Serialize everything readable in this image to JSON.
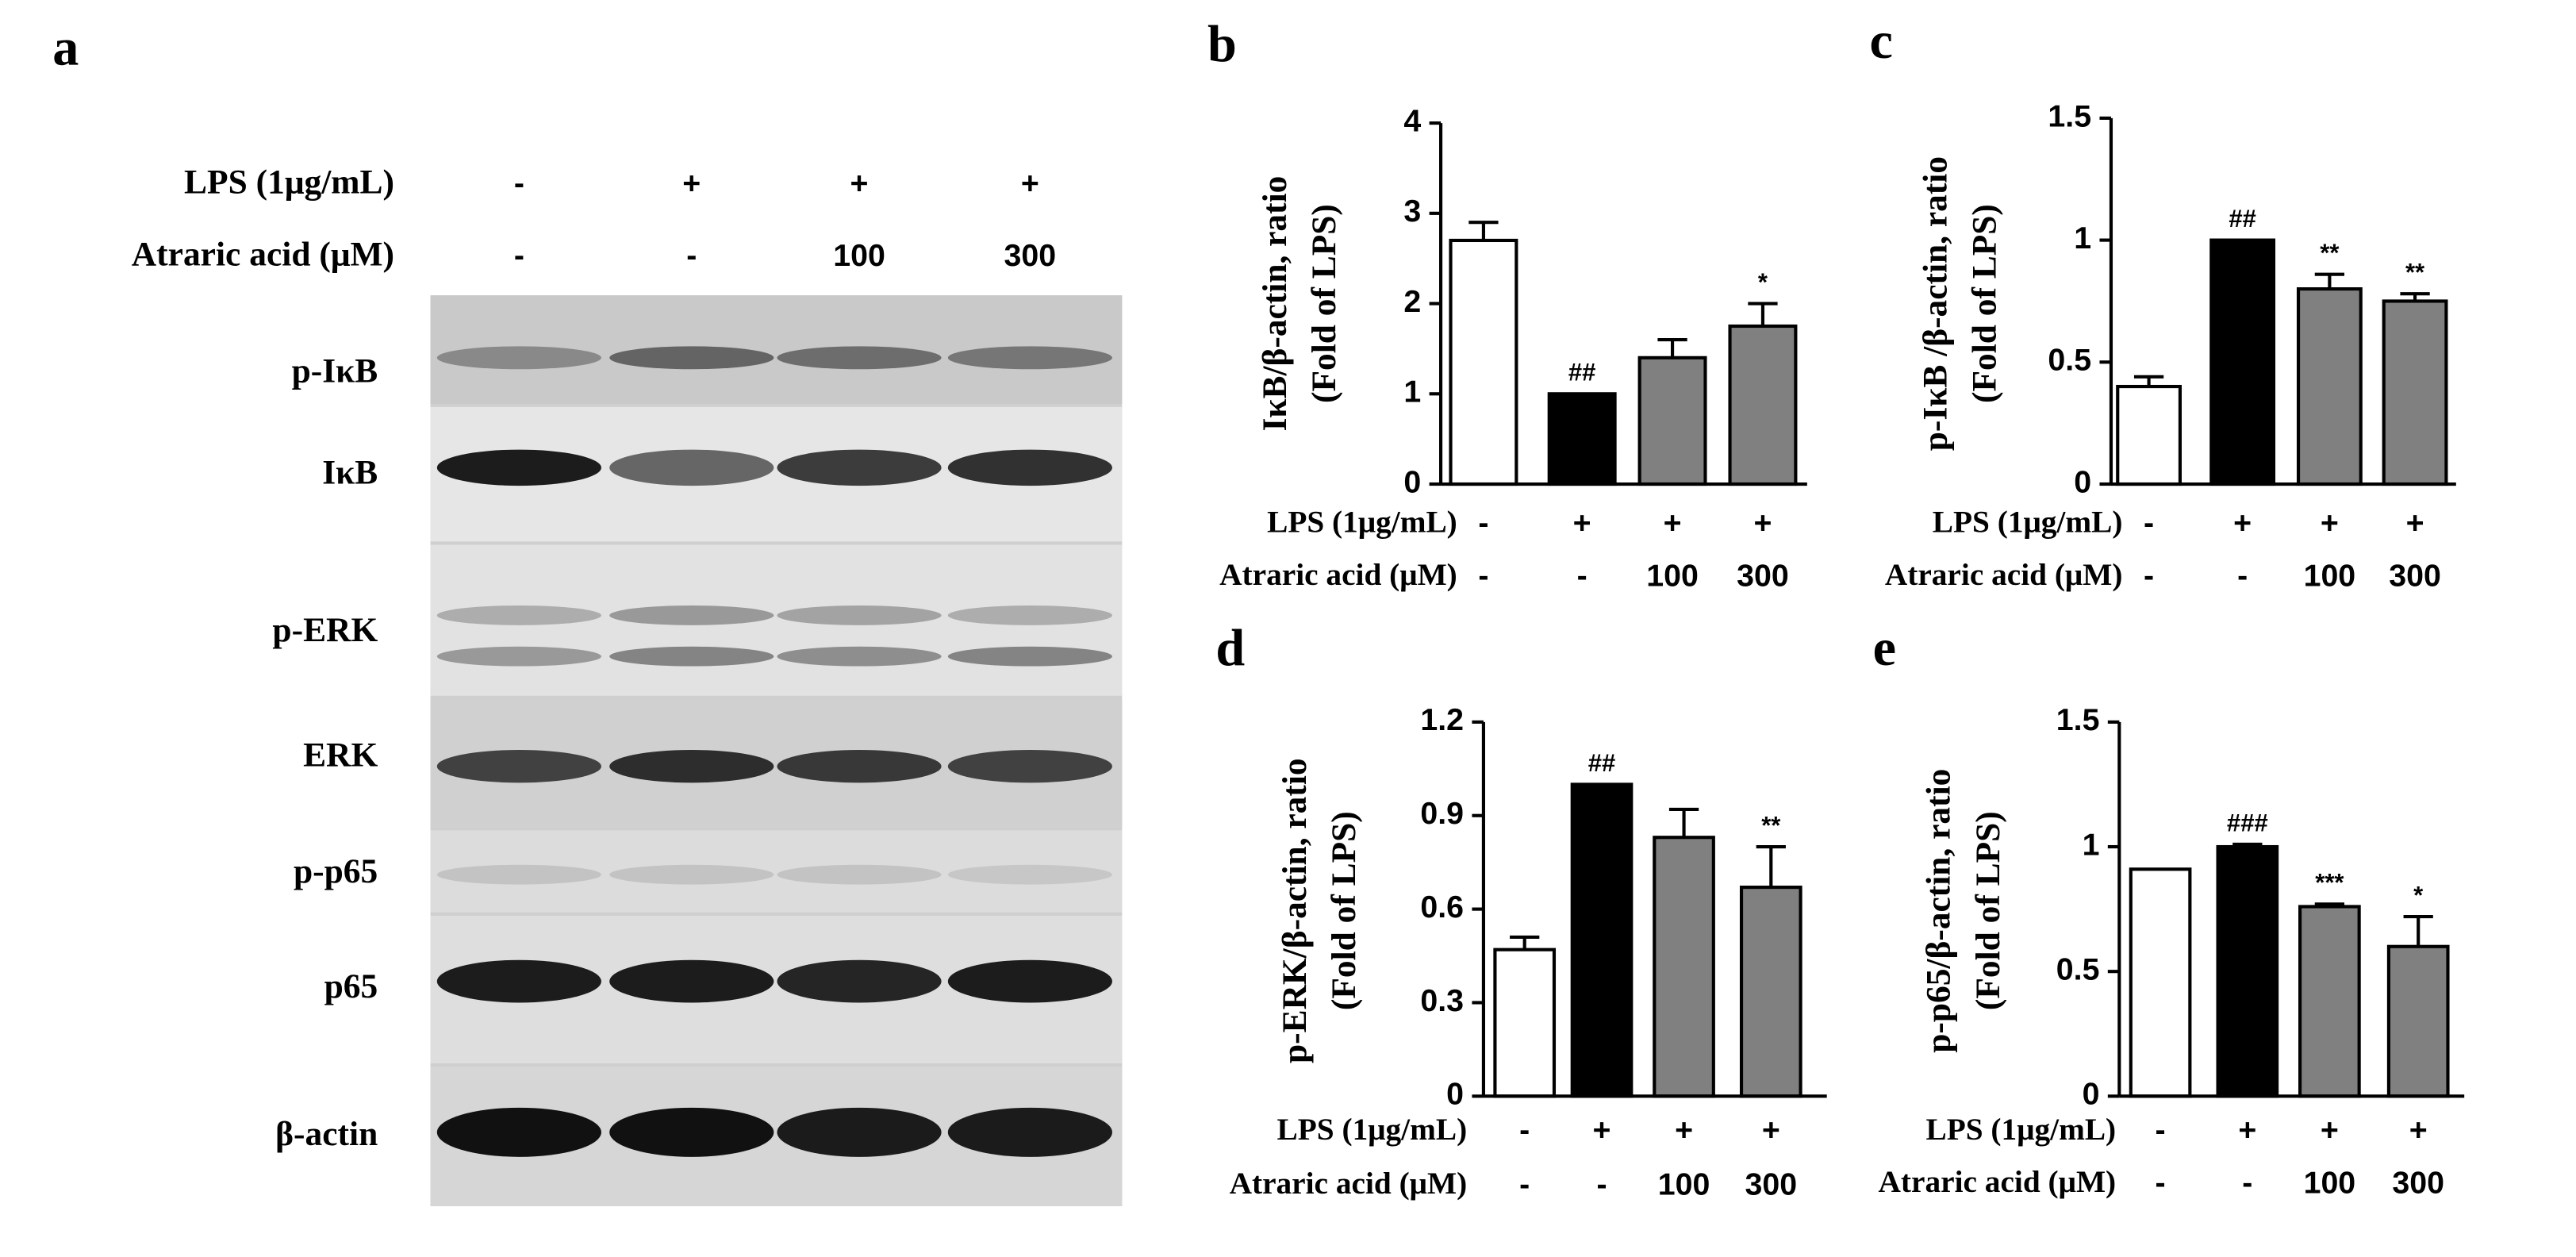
{
  "blot": {
    "panel": "a",
    "conditions": [
      {
        "name": "LPS (1μg/mL)",
        "labels": [
          "-",
          "+",
          "+",
          "+"
        ]
      },
      {
        "name": "Atraric acid (μM)",
        "labels": [
          "-",
          "-",
          "100",
          "300"
        ]
      }
    ],
    "proteins": [
      "p-IκB",
      "IκB",
      "p-ERK",
      "ERK",
      "p-p65",
      "p65",
      "β-actin"
    ]
  },
  "chart_data": [
    {
      "type": "bar",
      "panel": "b",
      "y_label": [
        "IκB/β-actin, ratio",
        "(Fold of LPS)"
      ],
      "conditions": [
        {
          "name": "LPS (1μg/mL)",
          "labels": [
            "-",
            "+",
            "+",
            "+"
          ]
        },
        {
          "name": "Atraric acid (μM)",
          "labels": [
            "-",
            "-",
            "100",
            "300"
          ]
        }
      ],
      "values": [
        2.7,
        1.0,
        1.4,
        1.75
      ],
      "errors": [
        0.2,
        0,
        0.2,
        0.25
      ],
      "annotations": [
        null,
        "##",
        null,
        "*"
      ],
      "colors": [
        "#ffffff",
        "#000000",
        "#808080",
        "#808080"
      ],
      "ylim": [
        0,
        4
      ],
      "yticks": [
        0,
        1,
        2,
        3,
        4
      ]
    },
    {
      "type": "bar",
      "panel": "c",
      "y_label": [
        "p-IκB /β-actin, ratio",
        "(Fold of LPS)"
      ],
      "conditions": [
        {
          "name": "LPS (1μg/mL)",
          "labels": [
            "-",
            "+",
            "+",
            "+"
          ]
        },
        {
          "name": "Atraric acid (μM)",
          "labels": [
            "-",
            "-",
            "100",
            "300"
          ]
        }
      ],
      "values": [
        0.4,
        1.0,
        0.8,
        0.75
      ],
      "errors": [
        0.04,
        0,
        0.06,
        0.03
      ],
      "annotations": [
        null,
        "##",
        "**",
        "**"
      ],
      "colors": [
        "#ffffff",
        "#000000",
        "#808080",
        "#808080"
      ],
      "ylim": [
        0,
        1.5
      ],
      "yticks": [
        0,
        0.5,
        1,
        1.5
      ]
    },
    {
      "type": "bar",
      "panel": "d",
      "y_label": [
        "p-ERK/β-actin, ratio",
        "(Fold of LPS)"
      ],
      "conditions": [
        {
          "name": "LPS (1μg/mL)",
          "labels": [
            "-",
            "+",
            "+",
            "+"
          ]
        },
        {
          "name": "Atraric acid (μM)",
          "labels": [
            "-",
            "-",
            "100",
            "300"
          ]
        }
      ],
      "values": [
        0.47,
        1.0,
        0.83,
        0.67
      ],
      "errors": [
        0.04,
        0,
        0.09,
        0.13
      ],
      "annotations": [
        null,
        "##",
        null,
        "**"
      ],
      "colors": [
        "#ffffff",
        "#000000",
        "#808080",
        "#808080"
      ],
      "ylim": [
        0,
        1.2
      ],
      "yticks": [
        0,
        0.3,
        0.6,
        0.9,
        1.2
      ]
    },
    {
      "type": "bar",
      "panel": "e",
      "y_label": [
        "p-p65/β-actin, ratio",
        "(Fold of LPS)"
      ],
      "conditions": [
        {
          "name": "LPS (1μg/mL)",
          "labels": [
            "-",
            "+",
            "+",
            "+"
          ]
        },
        {
          "name": "Atraric acid (μM)",
          "labels": [
            "-",
            "-",
            "100",
            "300"
          ]
        }
      ],
      "values": [
        0.91,
        1.0,
        0.76,
        0.6
      ],
      "errors": [
        0,
        0.01,
        0.01,
        0.12
      ],
      "annotations": [
        null,
        "###",
        "***",
        "*"
      ],
      "colors": [
        "#ffffff",
        "#000000",
        "#808080",
        "#808080"
      ],
      "ylim": [
        0,
        1.5
      ],
      "yticks": [
        0,
        0.5,
        1,
        1.5
      ]
    }
  ]
}
